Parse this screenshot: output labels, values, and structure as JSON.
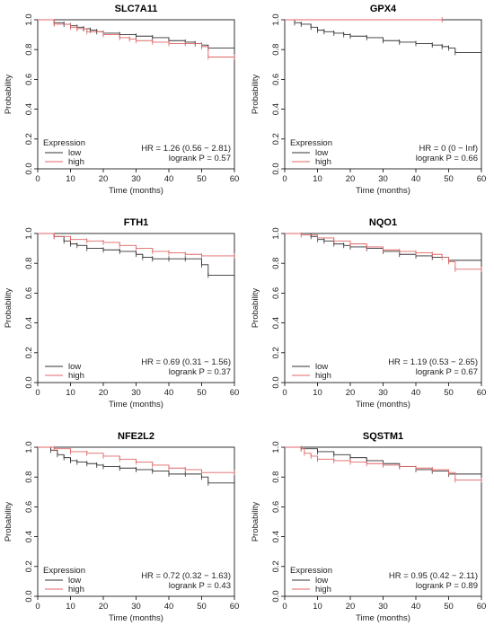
{
  "chart_data": [
    {
      "type": "line",
      "title": "SLC7A11",
      "xlabel": "Time (months)",
      "ylabel": "Probability",
      "xlim": [
        0,
        60
      ],
      "ylim": [
        0,
        1
      ],
      "xticks": [
        "0",
        "10",
        "20",
        "30",
        "40",
        "50",
        "60"
      ],
      "yticks": [
        "0.0",
        "0.2",
        "0.4",
        "0.6",
        "0.8",
        "1.0"
      ],
      "legend": {
        "title": "Expression",
        "placement": "bottom-left"
      },
      "stat_lines": [
        "HR = 1.26 (0.56 − 2.81)",
        "logrank P = 0.57"
      ],
      "series": [
        {
          "name": "low",
          "color": "#333333",
          "x": [
            0,
            5,
            8,
            10,
            12,
            14,
            16,
            18,
            20,
            25,
            30,
            35,
            40,
            45,
            48,
            50,
            52,
            60
          ],
          "y": [
            1.0,
            0.98,
            0.97,
            0.96,
            0.95,
            0.94,
            0.93,
            0.92,
            0.91,
            0.9,
            0.89,
            0.88,
            0.86,
            0.85,
            0.84,
            0.83,
            0.81,
            0.81
          ]
        },
        {
          "name": "high",
          "color": "#e06666",
          "x": [
            0,
            5,
            10,
            12,
            15,
            20,
            25,
            28,
            30,
            35,
            40,
            45,
            50,
            52,
            60
          ],
          "y": [
            1.0,
            0.97,
            0.95,
            0.94,
            0.92,
            0.9,
            0.88,
            0.87,
            0.86,
            0.85,
            0.84,
            0.84,
            0.82,
            0.75,
            0.75
          ]
        }
      ]
    },
    {
      "type": "line",
      "title": "GPX4",
      "xlabel": "Time (months)",
      "ylabel": "Probability",
      "xlim": [
        0,
        60
      ],
      "ylim": [
        0,
        1
      ],
      "xticks": [
        "0",
        "10",
        "20",
        "30",
        "40",
        "50",
        "60"
      ],
      "yticks": [
        "0.0",
        "0.2",
        "0.4",
        "0.6",
        "0.8",
        "1.0"
      ],
      "legend": {
        "title": "Expression",
        "placement": "bottom-left"
      },
      "stat_lines": [
        "HR = 0 (0 − Inf)",
        "logrank P = 0.66"
      ],
      "series": [
        {
          "name": "low",
          "color": "#333333",
          "x": [
            0,
            3,
            5,
            8,
            10,
            12,
            15,
            18,
            20,
            25,
            30,
            35,
            40,
            45,
            48,
            50,
            52,
            60
          ],
          "y": [
            1.0,
            0.98,
            0.97,
            0.95,
            0.93,
            0.92,
            0.91,
            0.9,
            0.89,
            0.88,
            0.86,
            0.85,
            0.84,
            0.83,
            0.82,
            0.81,
            0.78,
            0.78
          ]
        },
        {
          "name": "high",
          "color": "#e06666",
          "x": [
            0,
            48
          ],
          "y": [
            1.0,
            1.0
          ]
        }
      ]
    },
    {
      "type": "line",
      "title": "FTH1",
      "xlabel": "Time (months)",
      "ylabel": "Probability",
      "xlim": [
        0,
        60
      ],
      "ylim": [
        0,
        1
      ],
      "xticks": [
        "0",
        "10",
        "20",
        "30",
        "40",
        "50",
        "60"
      ],
      "yticks": [
        "0.0",
        "0.2",
        "0.4",
        "0.6",
        "0.8",
        "1.0"
      ],
      "legend": {
        "title": "",
        "placement": "bottom-left"
      },
      "stat_lines": [
        "HR = 0.69 (0.31 − 1.56)",
        "logrank P = 0.37"
      ],
      "series": [
        {
          "name": "low",
          "color": "#333333",
          "x": [
            0,
            5,
            8,
            10,
            12,
            15,
            20,
            25,
            30,
            32,
            35,
            40,
            45,
            50,
            52,
            60
          ],
          "y": [
            1.0,
            0.98,
            0.95,
            0.93,
            0.92,
            0.9,
            0.89,
            0.88,
            0.86,
            0.84,
            0.83,
            0.83,
            0.83,
            0.79,
            0.72,
            0.72
          ]
        },
        {
          "name": "high",
          "color": "#e06666",
          "x": [
            0,
            5,
            10,
            15,
            20,
            25,
            30,
            35,
            40,
            45,
            50,
            60
          ],
          "y": [
            1.0,
            0.98,
            0.96,
            0.95,
            0.94,
            0.92,
            0.9,
            0.88,
            0.87,
            0.86,
            0.85,
            0.85
          ]
        }
      ]
    },
    {
      "type": "line",
      "title": "NQO1",
      "xlabel": "Time (months)",
      "ylabel": "Probability",
      "xlim": [
        0,
        60
      ],
      "ylim": [
        0,
        1
      ],
      "xticks": [
        "0",
        "10",
        "20",
        "30",
        "40",
        "50",
        "60"
      ],
      "yticks": [
        "0.0",
        "0.2",
        "0.4",
        "0.6",
        "0.8",
        "1.0"
      ],
      "legend": {
        "title": "",
        "placement": "bottom-left"
      },
      "stat_lines": [
        "HR = 1.19 (0.53 − 2.65)",
        "logrank P = 0.67"
      ],
      "series": [
        {
          "name": "low",
          "color": "#333333",
          "x": [
            0,
            8,
            10,
            12,
            15,
            18,
            20,
            25,
            30,
            35,
            40,
            45,
            50,
            60
          ],
          "y": [
            1.0,
            0.98,
            0.96,
            0.95,
            0.93,
            0.92,
            0.91,
            0.9,
            0.88,
            0.86,
            0.85,
            0.84,
            0.82,
            0.82
          ]
        },
        {
          "name": "high",
          "color": "#e06666",
          "x": [
            0,
            5,
            10,
            15,
            20,
            25,
            30,
            35,
            40,
            45,
            48,
            50,
            52,
            60
          ],
          "y": [
            1.0,
            0.99,
            0.97,
            0.95,
            0.93,
            0.91,
            0.89,
            0.88,
            0.87,
            0.86,
            0.84,
            0.81,
            0.76,
            0.76
          ]
        }
      ]
    },
    {
      "type": "line",
      "title": "NFE2L2",
      "xlabel": "Time (months)",
      "ylabel": "Probability",
      "xlim": [
        0,
        60
      ],
      "ylim": [
        0,
        1
      ],
      "xticks": [
        "0",
        "10",
        "20",
        "30",
        "40",
        "50",
        "60"
      ],
      "yticks": [
        "0.0",
        "0.2",
        "0.4",
        "0.6",
        "0.8",
        "1.0"
      ],
      "legend": {
        "title": "Expression",
        "placement": "bottom-left"
      },
      "stat_lines": [
        "HR = 0.72 (0.32 − 1.63)",
        "logrank P = 0.43"
      ],
      "series": [
        {
          "name": "low",
          "color": "#333333",
          "x": [
            0,
            4,
            6,
            8,
            10,
            12,
            15,
            18,
            20,
            25,
            30,
            35,
            40,
            45,
            50,
            52,
            60
          ],
          "y": [
            1.0,
            0.98,
            0.95,
            0.93,
            0.91,
            0.9,
            0.89,
            0.88,
            0.87,
            0.86,
            0.85,
            0.84,
            0.82,
            0.82,
            0.8,
            0.76,
            0.76
          ]
        },
        {
          "name": "high",
          "color": "#e06666",
          "x": [
            0,
            5,
            10,
            15,
            20,
            25,
            30,
            35,
            40,
            45,
            50,
            60
          ],
          "y": [
            1.0,
            0.99,
            0.97,
            0.96,
            0.94,
            0.92,
            0.9,
            0.88,
            0.86,
            0.85,
            0.83,
            0.83
          ]
        }
      ]
    },
    {
      "type": "line",
      "title": "SQSTM1",
      "xlabel": "Time (months)",
      "ylabel": "Probability",
      "xlim": [
        0,
        60
      ],
      "ylim": [
        0,
        1
      ],
      "xticks": [
        "0",
        "10",
        "20",
        "30",
        "40",
        "50",
        "60"
      ],
      "yticks": [
        "0.0",
        "0.2",
        "0.4",
        "0.6",
        "0.8",
        "1.0"
      ],
      "legend": {
        "title": "Expression",
        "placement": "bottom-left"
      },
      "stat_lines": [
        "HR = 0.95 (0.42 − 2.11)",
        "logrank P = 0.89"
      ],
      "series": [
        {
          "name": "low",
          "color": "#333333",
          "x": [
            0,
            5,
            10,
            15,
            20,
            25,
            30,
            35,
            40,
            45,
            50,
            60
          ],
          "y": [
            1.0,
            0.99,
            0.97,
            0.95,
            0.93,
            0.91,
            0.89,
            0.87,
            0.85,
            0.84,
            0.82,
            0.82
          ]
        },
        {
          "name": "high",
          "color": "#e06666",
          "x": [
            0,
            5,
            6,
            8,
            10,
            15,
            20,
            25,
            30,
            35,
            40,
            45,
            50,
            52,
            60
          ],
          "y": [
            1.0,
            0.99,
            0.96,
            0.94,
            0.92,
            0.91,
            0.9,
            0.89,
            0.88,
            0.87,
            0.86,
            0.85,
            0.83,
            0.78,
            0.78
          ]
        }
      ]
    }
  ]
}
